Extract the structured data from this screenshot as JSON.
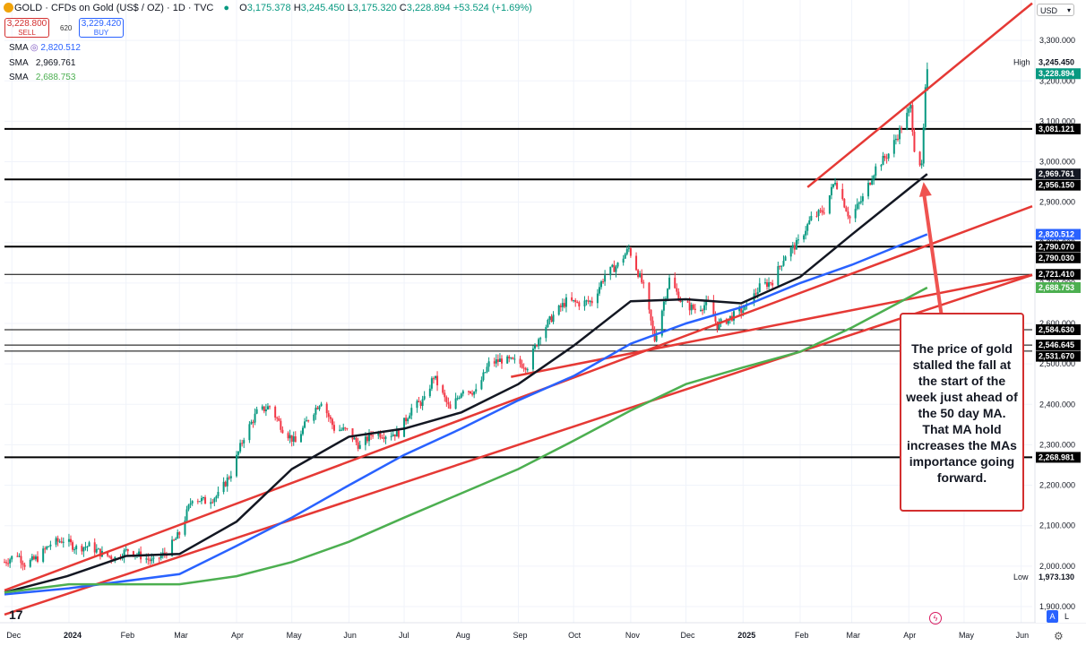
{
  "header": {
    "symbol": "GOLD",
    "title": "CFDs on Gold (US$ / OZ)",
    "interval": "1D",
    "source": "TVC",
    "sep": "·",
    "open_label": "O",
    "open": "3,175.378",
    "high_label": "H",
    "high": "3,245.450",
    "low_label": "L",
    "low": "3,175.320",
    "close_label": "C",
    "close": "3,228.894",
    "change": "+53.524 (+1.69%)"
  },
  "trade": {
    "sell_price": "3,228.800",
    "sell_label": "SELL",
    "spread": "620",
    "buy_price": "3,229.420",
    "buy_label": "BUY"
  },
  "indicators": [
    {
      "name": "SMA",
      "value": "2,820.512"
    },
    {
      "name": "SMA",
      "value": "2,969.761"
    },
    {
      "name": "SMA",
      "value": "2,688.753"
    }
  ],
  "currency": "USD",
  "annotation": "The price of gold stalled the fall at the start of the week just ahead of the 50 day MA. That MA hold increases the MAs importance going forward.",
  "buttons": {
    "auto": "A",
    "log": "L"
  },
  "tv_logo": "17",
  "colors": {
    "up": "#089981",
    "down": "#f23645",
    "sma100": "#2962ff",
    "sma50": "#131722",
    "sma200": "#4caf50",
    "trendline": "#e53935",
    "hline": "#000000"
  },
  "chart_data": {
    "type": "candlestick",
    "symbol": "GOLD",
    "interval": "1D",
    "ylim": [
      1860,
      3400
    ],
    "y_ticks": [
      1900,
      2000,
      2100,
      2200,
      2300,
      2400,
      2500,
      2600,
      2700,
      2800,
      2900,
      3000,
      3100,
      3200,
      3300
    ],
    "y_tick_labels": [
      "1,900.000",
      "2,000.000",
      "2,100.000",
      "2,200.000",
      "2,300.000",
      "2,400.000",
      "2,500.000",
      "2,600.000",
      "2,700.000",
      "2,800.000",
      "2,900.000",
      "3,000.000",
      "3,100.000",
      "3,200.000",
      "3,300.000"
    ],
    "x_start": "2023-11-27",
    "x_end": "2025-06-07",
    "x_ticks": [
      {
        "date": "2023-12-01",
        "label": "Dec"
      },
      {
        "date": "2024-01-01",
        "label": "2024",
        "bold": true
      },
      {
        "date": "2024-02-01",
        "label": "Feb"
      },
      {
        "date": "2024-03-01",
        "label": "Mar"
      },
      {
        "date": "2024-04-01",
        "label": "Apr"
      },
      {
        "date": "2024-05-01",
        "label": "May"
      },
      {
        "date": "2024-06-01",
        "label": "Jun"
      },
      {
        "date": "2024-07-01",
        "label": "Jul"
      },
      {
        "date": "2024-08-01",
        "label": "Aug"
      },
      {
        "date": "2024-09-01",
        "label": "Sep"
      },
      {
        "date": "2024-10-01",
        "label": "Oct"
      },
      {
        "date": "2024-11-01",
        "label": "Nov"
      },
      {
        "date": "2024-12-01",
        "label": "Dec"
      },
      {
        "date": "2025-01-01",
        "label": "2025",
        "bold": true
      },
      {
        "date": "2025-02-01",
        "label": "Feb"
      },
      {
        "date": "2025-03-01",
        "label": "Mar"
      },
      {
        "date": "2025-04-01",
        "label": "Apr"
      },
      {
        "date": "2025-05-01",
        "label": "May"
      },
      {
        "date": "2025-06-01",
        "label": "Jun"
      }
    ],
    "close_path": [
      {
        "date": "2023-11-27",
        "close": 2010
      },
      {
        "date": "2023-12-04",
        "close": 2030
      },
      {
        "date": "2023-12-08",
        "close": 2005
      },
      {
        "date": "2023-12-15",
        "close": 2020
      },
      {
        "date": "2023-12-22",
        "close": 2055
      },
      {
        "date": "2023-12-29",
        "close": 2065
      },
      {
        "date": "2024-01-05",
        "close": 2045
      },
      {
        "date": "2024-01-12",
        "close": 2050
      },
      {
        "date": "2024-01-19",
        "close": 2030
      },
      {
        "date": "2024-01-26",
        "close": 2020
      },
      {
        "date": "2024-02-02",
        "close": 2040
      },
      {
        "date": "2024-02-09",
        "close": 2025
      },
      {
        "date": "2024-02-16",
        "close": 2010
      },
      {
        "date": "2024-02-23",
        "close": 2035
      },
      {
        "date": "2024-03-01",
        "close": 2080
      },
      {
        "date": "2024-03-08",
        "close": 2170
      },
      {
        "date": "2024-03-15",
        "close": 2160
      },
      {
        "date": "2024-03-22",
        "close": 2175
      },
      {
        "date": "2024-03-29",
        "close": 2230
      },
      {
        "date": "2024-04-05",
        "close": 2320
      },
      {
        "date": "2024-04-12",
        "close": 2380
      },
      {
        "date": "2024-04-19",
        "close": 2395
      },
      {
        "date": "2024-04-26",
        "close": 2340
      },
      {
        "date": "2024-05-03",
        "close": 2305
      },
      {
        "date": "2024-05-10",
        "close": 2365
      },
      {
        "date": "2024-05-17",
        "close": 2410
      },
      {
        "date": "2024-05-24",
        "close": 2340
      },
      {
        "date": "2024-05-31",
        "close": 2335
      },
      {
        "date": "2024-06-07",
        "close": 2295
      },
      {
        "date": "2024-06-14",
        "close": 2330
      },
      {
        "date": "2024-06-21",
        "close": 2325
      },
      {
        "date": "2024-06-28",
        "close": 2330
      },
      {
        "date": "2024-07-05",
        "close": 2390
      },
      {
        "date": "2024-07-12",
        "close": 2410
      },
      {
        "date": "2024-07-17",
        "close": 2470
      },
      {
        "date": "2024-07-26",
        "close": 2385
      },
      {
        "date": "2024-08-02",
        "close": 2440
      },
      {
        "date": "2024-08-09",
        "close": 2430
      },
      {
        "date": "2024-08-16",
        "close": 2500
      },
      {
        "date": "2024-08-23",
        "close": 2510
      },
      {
        "date": "2024-08-30",
        "close": 2505
      },
      {
        "date": "2024-09-06",
        "close": 2495
      },
      {
        "date": "2024-09-13",
        "close": 2575
      },
      {
        "date": "2024-09-20",
        "close": 2620
      },
      {
        "date": "2024-09-27",
        "close": 2655
      },
      {
        "date": "2024-10-04",
        "close": 2650
      },
      {
        "date": "2024-10-11",
        "close": 2655
      },
      {
        "date": "2024-10-18",
        "close": 2720
      },
      {
        "date": "2024-10-25",
        "close": 2745
      },
      {
        "date": "2024-10-31",
        "close": 2785
      },
      {
        "date": "2024-11-08",
        "close": 2690
      },
      {
        "date": "2024-11-14",
        "close": 2560
      },
      {
        "date": "2024-11-22",
        "close": 2710
      },
      {
        "date": "2024-11-29",
        "close": 2650
      },
      {
        "date": "2024-12-06",
        "close": 2635
      },
      {
        "date": "2024-12-13",
        "close": 2650
      },
      {
        "date": "2024-12-18",
        "close": 2595
      },
      {
        "date": "2024-12-27",
        "close": 2620
      },
      {
        "date": "2025-01-03",
        "close": 2640
      },
      {
        "date": "2025-01-10",
        "close": 2690
      },
      {
        "date": "2025-01-17",
        "close": 2705
      },
      {
        "date": "2025-01-24",
        "close": 2770
      },
      {
        "date": "2025-01-31",
        "close": 2800
      },
      {
        "date": "2025-02-07",
        "close": 2860
      },
      {
        "date": "2025-02-14",
        "close": 2880
      },
      {
        "date": "2025-02-20",
        "close": 2955
      },
      {
        "date": "2025-02-28",
        "close": 2860
      },
      {
        "date": "2025-03-07",
        "close": 2910
      },
      {
        "date": "2025-03-14",
        "close": 2985
      },
      {
        "date": "2025-03-21",
        "close": 3020
      },
      {
        "date": "2025-03-28",
        "close": 3085
      },
      {
        "date": "2025-04-02",
        "close": 3135
      },
      {
        "date": "2025-04-04",
        "close": 3035
      },
      {
        "date": "2025-04-08",
        "close": 2985
      },
      {
        "date": "2025-04-09",
        "close": 3080
      },
      {
        "date": "2025-04-10",
        "close": 3175
      },
      {
        "date": "2025-04-11",
        "close": 3229
      }
    ],
    "last": {
      "open": 3175.378,
      "high": 3245.45,
      "low": 3175.32,
      "close": 3228.894
    },
    "moving_averages": [
      {
        "name": "SMA",
        "color": "#131722",
        "points": [
          {
            "date": "2023-11-27",
            "value": 1935
          },
          {
            "date": "2023-12-31",
            "value": 1975
          },
          {
            "date": "2024-02-01",
            "value": 2025
          },
          {
            "date": "2024-03-01",
            "value": 2030
          },
          {
            "date": "2024-04-01",
            "value": 2110
          },
          {
            "date": "2024-05-01",
            "value": 2240
          },
          {
            "date": "2024-06-01",
            "value": 2320
          },
          {
            "date": "2024-07-01",
            "value": 2340
          },
          {
            "date": "2024-08-01",
            "value": 2380
          },
          {
            "date": "2024-09-01",
            "value": 2450
          },
          {
            "date": "2024-10-01",
            "value": 2545
          },
          {
            "date": "2024-11-01",
            "value": 2655
          },
          {
            "date": "2024-12-01",
            "value": 2660
          },
          {
            "date": "2024-12-31",
            "value": 2650
          },
          {
            "date": "2025-02-01",
            "value": 2715
          },
          {
            "date": "2025-03-01",
            "value": 2820
          },
          {
            "date": "2025-04-11",
            "value": 2969.761
          }
        ]
      },
      {
        "name": "SMA",
        "color": "#2962ff",
        "points": [
          {
            "date": "2023-11-27",
            "value": 1930
          },
          {
            "date": "2024-01-01",
            "value": 1945
          },
          {
            "date": "2024-03-01",
            "value": 1980
          },
          {
            "date": "2024-04-01",
            "value": 2050
          },
          {
            "date": "2024-05-01",
            "value": 2120
          },
          {
            "date": "2024-06-01",
            "value": 2200
          },
          {
            "date": "2024-07-01",
            "value": 2275
          },
          {
            "date": "2024-08-01",
            "value": 2340
          },
          {
            "date": "2024-09-01",
            "value": 2410
          },
          {
            "date": "2024-10-01",
            "value": 2470
          },
          {
            "date": "2024-11-01",
            "value": 2550
          },
          {
            "date": "2024-12-01",
            "value": 2600
          },
          {
            "date": "2024-12-31",
            "value": 2640
          },
          {
            "date": "2025-02-01",
            "value": 2700
          },
          {
            "date": "2025-03-01",
            "value": 2745
          },
          {
            "date": "2025-04-11",
            "value": 2820.512
          }
        ]
      },
      {
        "name": "SMA",
        "color": "#4caf50",
        "points": [
          {
            "date": "2023-11-27",
            "value": 1935
          },
          {
            "date": "2024-01-01",
            "value": 1955
          },
          {
            "date": "2024-03-01",
            "value": 1955
          },
          {
            "date": "2024-04-01",
            "value": 1975
          },
          {
            "date": "2024-05-01",
            "value": 2010
          },
          {
            "date": "2024-06-01",
            "value": 2060
          },
          {
            "date": "2024-07-01",
            "value": 2120
          },
          {
            "date": "2024-08-01",
            "value": 2180
          },
          {
            "date": "2024-09-01",
            "value": 2240
          },
          {
            "date": "2024-10-01",
            "value": 2310
          },
          {
            "date": "2024-11-01",
            "value": 2385
          },
          {
            "date": "2024-12-01",
            "value": 2450
          },
          {
            "date": "2024-12-31",
            "value": 2490
          },
          {
            "date": "2025-02-01",
            "value": 2530
          },
          {
            "date": "2025-03-01",
            "value": 2590
          },
          {
            "date": "2025-04-11",
            "value": 2688.753
          }
        ]
      }
    ],
    "horizontal_levels": [
      {
        "price": 3081.121,
        "label": "3,081.121",
        "weight": 2
      },
      {
        "price": 2956.15,
        "label": "2,956.150",
        "weight": 2
      },
      {
        "price": 2790.07,
        "label": "2,790.070",
        "weight": 2
      },
      {
        "price": 2721.41,
        "label": "2,721.410",
        "weight": 1
      },
      {
        "price": 2584.63,
        "label": "2,584.630",
        "weight": 1
      },
      {
        "price": 2546.645,
        "label": "2,546.645",
        "weight": 1
      },
      {
        "price": 2531.67,
        "label": "2,531.670",
        "weight": 1
      },
      {
        "price": 2268.981,
        "label": "2,268.981",
        "weight": 2
      }
    ],
    "trendlines": [
      {
        "from": {
          "date": "2023-11-27",
          "price": 1880
        },
        "to": {
          "date": "2025-06-07",
          "price": 2720
        }
      },
      {
        "from": {
          "date": "2023-11-27",
          "price": 1940
        },
        "to": {
          "date": "2025-06-07",
          "price": 2890
        }
      },
      {
        "from": {
          "date": "2024-08-28",
          "price": 2468
        },
        "to": {
          "date": "2025-06-07",
          "price": 2720
        }
      },
      {
        "from": {
          "date": "2025-02-05",
          "price": 2937
        },
        "to": {
          "date": "2025-06-07",
          "price": 3392
        }
      }
    ],
    "axis_labels": [
      {
        "price": 3245.45,
        "label": "3,245.450",
        "tag": "High",
        "bg": "#ffffff",
        "fg": "#131722"
      },
      {
        "price": 3228.894,
        "label": "3,228.894",
        "bg": "#089981",
        "fg": "#ffffff"
      },
      {
        "price": 3081.121,
        "label": "3,081.121",
        "bg": "#000000",
        "fg": "#ffffff"
      },
      {
        "price": 2969.761,
        "label": "2,969.761",
        "bg": "#131722",
        "fg": "#ffffff"
      },
      {
        "price": 2956.15,
        "label": "2,956.150",
        "bg": "#000000",
        "fg": "#ffffff"
      },
      {
        "price": 2820.512,
        "label": "2,820.512",
        "bg": "#2962ff",
        "fg": "#ffffff"
      },
      {
        "price": 2790.07,
        "label": "2,790.070",
        "bg": "#000000",
        "fg": "#ffffff"
      },
      {
        "price": 2790.03,
        "label": "2,790.030",
        "bg": "#000000",
        "fg": "#ffffff"
      },
      {
        "price": 2721.41,
        "label": "2,721.410",
        "bg": "#000000",
        "fg": "#ffffff"
      },
      {
        "price": 2688.753,
        "label": "2,688.753",
        "bg": "#4caf50",
        "fg": "#ffffff"
      },
      {
        "price": 2584.63,
        "label": "2,584.630",
        "bg": "#000000",
        "fg": "#ffffff"
      },
      {
        "price": 2546.645,
        "label": "2,546.645",
        "bg": "#000000",
        "fg": "#ffffff"
      },
      {
        "price": 2531.67,
        "label": "2,531.670",
        "bg": "#000000",
        "fg": "#ffffff"
      },
      {
        "price": 2268.981,
        "label": "2,268.981",
        "bg": "#000000",
        "fg": "#ffffff"
      },
      {
        "price": 1973.13,
        "label": "1,973.130",
        "tag": "Low",
        "bg": "#ffffff",
        "fg": "#131722"
      }
    ],
    "arrow": {
      "from": {
        "date": "2025-04-20",
        "price": 2580
      },
      "to": {
        "date": "2025-04-09",
        "price": 2950
      }
    }
  }
}
